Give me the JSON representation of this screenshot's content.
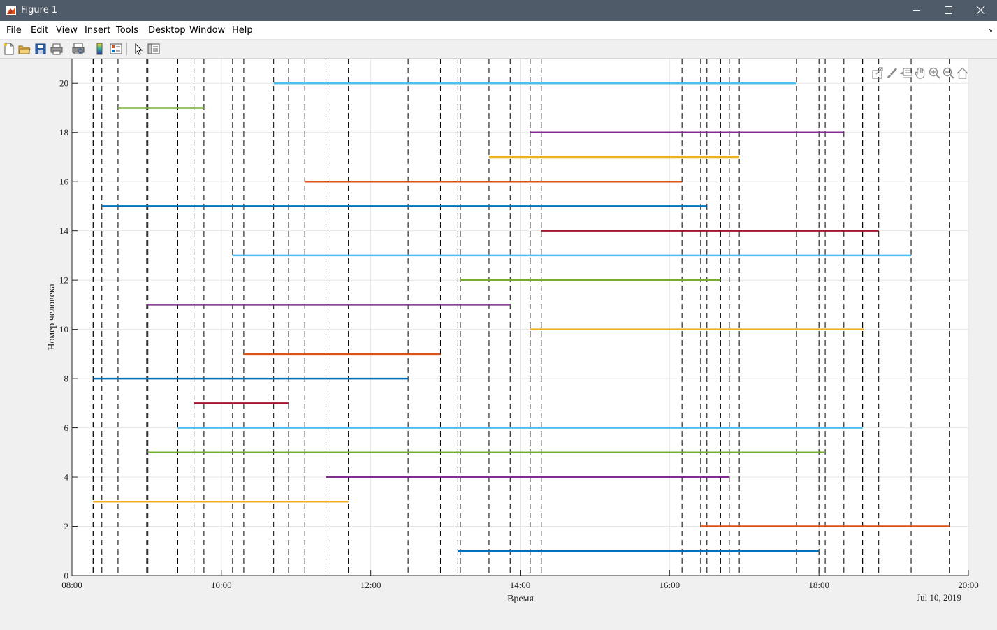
{
  "window": {
    "title": "Figure 1"
  },
  "menu": {
    "items": [
      "File",
      "Edit",
      "View",
      "Insert",
      "Tools",
      "Desktop",
      "Window",
      "Help"
    ]
  },
  "toolbar": {
    "icons": [
      "new-figure-icon",
      "open-file-icon",
      "save-icon",
      "print-icon",
      "print-preview-icon",
      "colorbar-icon",
      "legend-icon",
      "pointer-icon",
      "property-editor-icon"
    ]
  },
  "axes_toolbar": {
    "icons": [
      "export-icon",
      "brush-icon",
      "data-tips-icon",
      "pan-icon",
      "zoom-in-icon",
      "zoom-out-icon",
      "restore-view-icon"
    ]
  },
  "chart_data": {
    "type": "line",
    "xlabel": "Время",
    "ylabel": "Номер человека",
    "date_label": "Jul 10, 2019",
    "x_ticks": [
      "08:00",
      "10:00",
      "12:00",
      "14:00",
      "16:00",
      "18:00",
      "20:00"
    ],
    "xlim": [
      "08:00",
      "20:00"
    ],
    "ylim": [
      0,
      21
    ],
    "y_ticks": [
      0,
      2,
      4,
      6,
      8,
      10,
      12,
      14,
      16,
      18,
      20
    ],
    "grid": true,
    "colors": [
      "#0072bd",
      "#d95319",
      "#edb120",
      "#7e2f8e",
      "#77ac30",
      "#4dbeee",
      "#a2142f"
    ],
    "series": [
      {
        "person": 1,
        "start": "13:10",
        "end": "18:00"
      },
      {
        "person": 2,
        "start": "16:25",
        "end": "19:45"
      },
      {
        "person": 3,
        "start": "08:17",
        "end": "11:42"
      },
      {
        "person": 4,
        "start": "11:24",
        "end": "16:48"
      },
      {
        "person": 5,
        "start": "09:01",
        "end": "18:05"
      },
      {
        "person": 6,
        "start": "09:25",
        "end": "18:35"
      },
      {
        "person": 7,
        "start": "09:38",
        "end": "10:54"
      },
      {
        "person": 8,
        "start": "08:17",
        "end": "12:30"
      },
      {
        "person": 9,
        "start": "10:18",
        "end": "12:56"
      },
      {
        "person": 10,
        "start": "14:08",
        "end": "18:36"
      },
      {
        "person": 11,
        "start": "09:00",
        "end": "13:52"
      },
      {
        "person": 12,
        "start": "13:12",
        "end": "16:41"
      },
      {
        "person": 13,
        "start": "10:09",
        "end": "19:14"
      },
      {
        "person": 14,
        "start": "14:17",
        "end": "18:48"
      },
      {
        "person": 15,
        "start": "08:24",
        "end": "16:30"
      },
      {
        "person": 16,
        "start": "11:07",
        "end": "16:10"
      },
      {
        "person": 17,
        "start": "13:35",
        "end": "16:56"
      },
      {
        "person": 18,
        "start": "14:08",
        "end": "18:20"
      },
      {
        "person": 19,
        "start": "08:37",
        "end": "09:46"
      },
      {
        "person": 20,
        "start": "10:42",
        "end": "17:42"
      }
    ]
  }
}
